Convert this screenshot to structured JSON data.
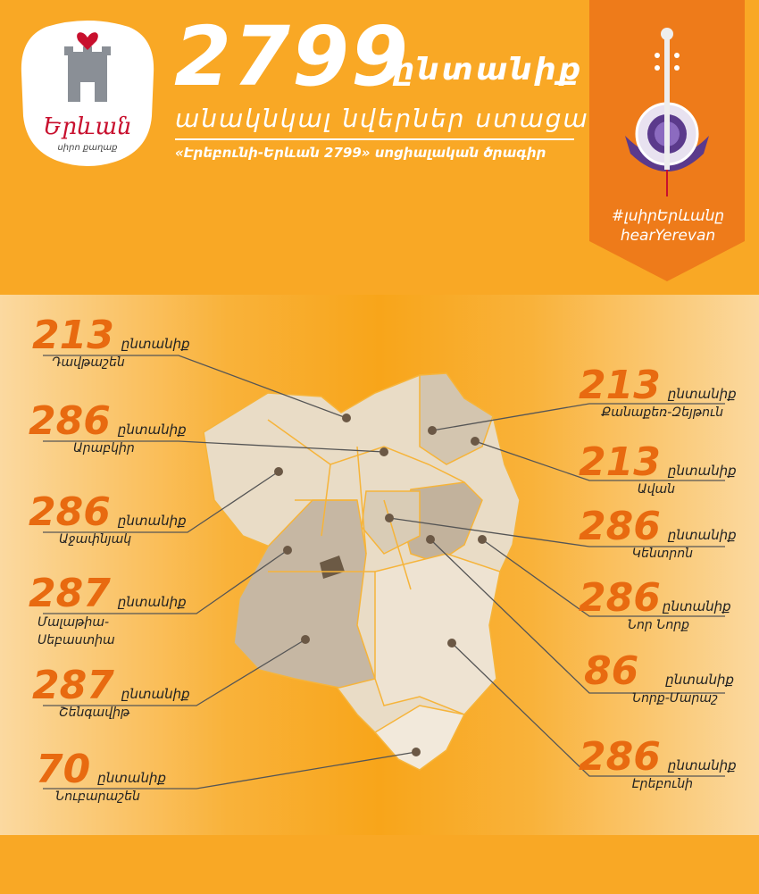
{
  "header": {
    "logo_text": "Երևան",
    "logo_sub": "սիրո քաղաք",
    "total": "2799",
    "families_word": "ընտանիք",
    "subtitle": "անակնկալ նվերներ ստացան",
    "program": "«Էրեբունի-Երևան 2799» սոցիալական ծրագիր"
  },
  "banner": {
    "hashtag": "#լսիրԵրևանը",
    "hashtag_en": "hearYerevan"
  },
  "districts": [
    {
      "number": "213",
      "unit": "ընտանիք",
      "name": "Դավթաշեն"
    },
    {
      "number": "286",
      "unit": "ընտանիք",
      "name": "Արաբկիր"
    },
    {
      "number": "286",
      "unit": "ընտանիք",
      "name": "Աջափնյակ"
    },
    {
      "number": "287",
      "unit": "ընտանիք",
      "name": "Մալաթիա-Սեբաստիա"
    },
    {
      "number": "287",
      "unit": "ընտանիք",
      "name": "Շենգավիթ"
    },
    {
      "number": "70",
      "unit": "ընտանիք",
      "name": "Նուբարաշեն"
    },
    {
      "number": "213",
      "unit": "ընտանիք",
      "name": "Քանաքեռ-Զեյթուն"
    },
    {
      "number": "213",
      "unit": "ընտանիք",
      "name": "Ավան"
    },
    {
      "number": "286",
      "unit": "ընտանիք",
      "name": "Կենտրոն"
    },
    {
      "number": "286",
      "unit": "ընտանիք",
      "name": "Նոր Նորք"
    },
    {
      "number": "86",
      "unit": "ընտանիք",
      "name": "Նորք-Մարաշ"
    },
    {
      "number": "286",
      "unit": "ընտանիք",
      "name": "Էրեբունի"
    }
  ],
  "colors": {
    "orange": "#f9a825",
    "deep_orange": "#ee7b1a",
    "number": "#e86a10",
    "logo_red": "#c8102e"
  }
}
